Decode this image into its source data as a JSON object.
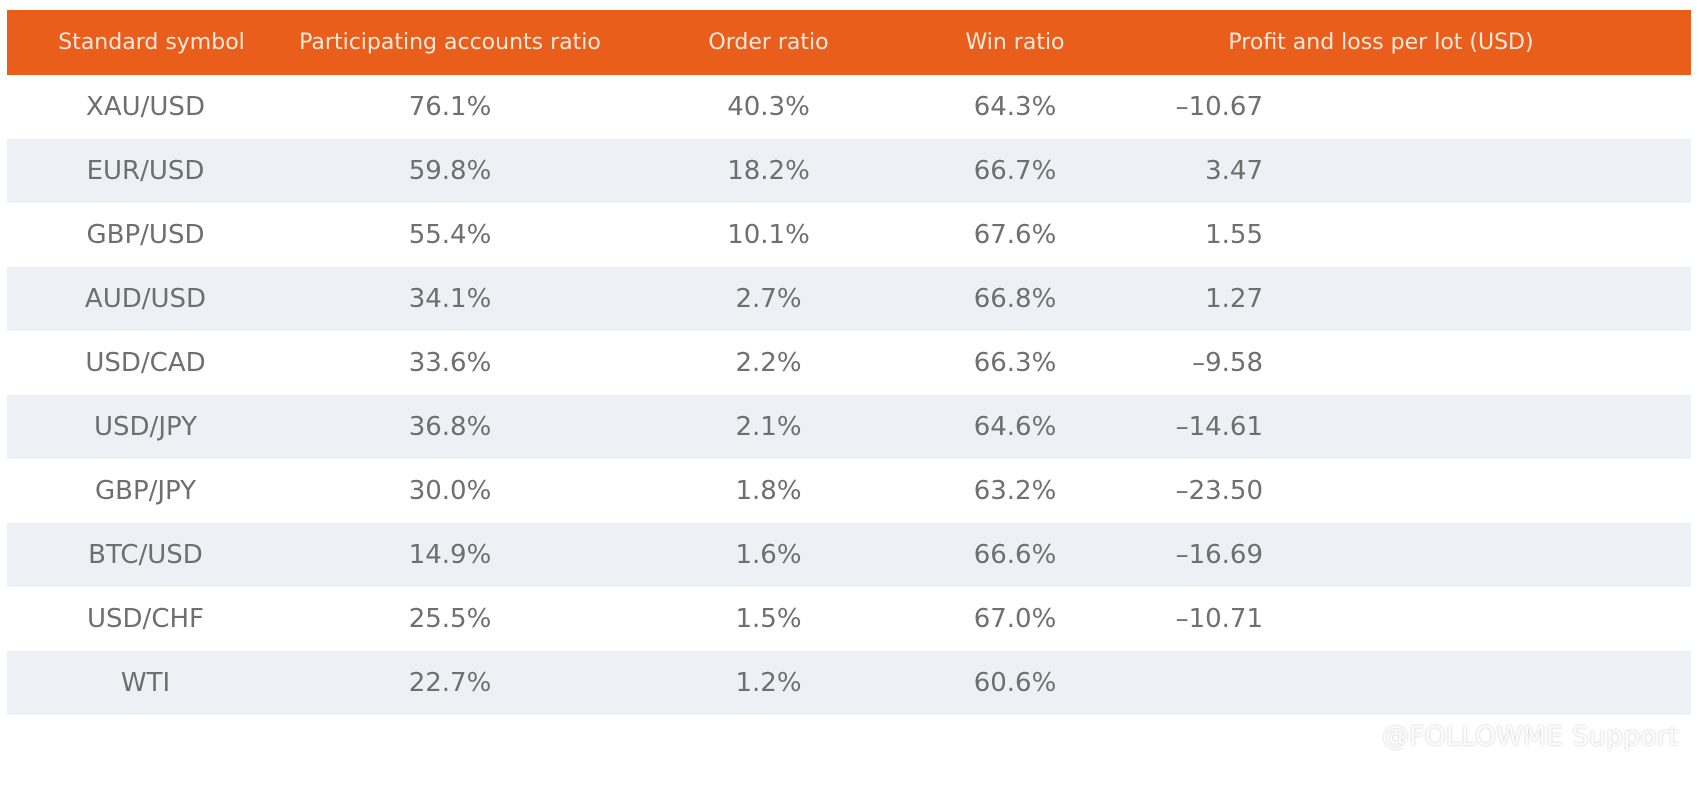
{
  "table": {
    "headers": {
      "symbol": "Standard symbol",
      "participating": "Participating accounts ratio",
      "order": "Order ratio",
      "win": "Win ratio",
      "pnl": "Profit and loss per lot (USD)"
    },
    "rows": [
      {
        "symbol": "XAU/USD",
        "participating": "76.1%",
        "order": "40.3%",
        "win": "64.3%",
        "pnl": "–10.67"
      },
      {
        "symbol": "EUR/USD",
        "participating": "59.8%",
        "order": "18.2%",
        "win": "66.7%",
        "pnl": "3.47"
      },
      {
        "symbol": "GBP/USD",
        "participating": "55.4%",
        "order": "10.1%",
        "win": "67.6%",
        "pnl": "1.55"
      },
      {
        "symbol": "AUD/USD",
        "participating": "34.1%",
        "order": "2.7%",
        "win": "66.8%",
        "pnl": "1.27"
      },
      {
        "symbol": "USD/CAD",
        "participating": "33.6%",
        "order": "2.2%",
        "win": "66.3%",
        "pnl": "–9.58"
      },
      {
        "symbol": "USD/JPY",
        "participating": "36.8%",
        "order": "2.1%",
        "win": "64.6%",
        "pnl": "–14.61"
      },
      {
        "symbol": "GBP/JPY",
        "participating": "30.0%",
        "order": "1.8%",
        "win": "63.2%",
        "pnl": "–23.50"
      },
      {
        "symbol": "BTC/USD",
        "participating": "14.9%",
        "order": "1.6%",
        "win": "66.6%",
        "pnl": "–16.69"
      },
      {
        "symbol": "USD/CHF",
        "participating": "25.5%",
        "order": "1.5%",
        "win": "67.0%",
        "pnl": "–10.71"
      },
      {
        "symbol": "WTI",
        "participating": "22.7%",
        "order": "1.2%",
        "win": "60.6%",
        "pnl": ""
      }
    ]
  },
  "watermark": {
    "text": "@FOLLOWME Support",
    "icon": "weibo-icon"
  },
  "colors": {
    "header_bg": "#e95e1b",
    "alt_row_bg": "#edf0f5",
    "text": "#6f6f6f"
  }
}
